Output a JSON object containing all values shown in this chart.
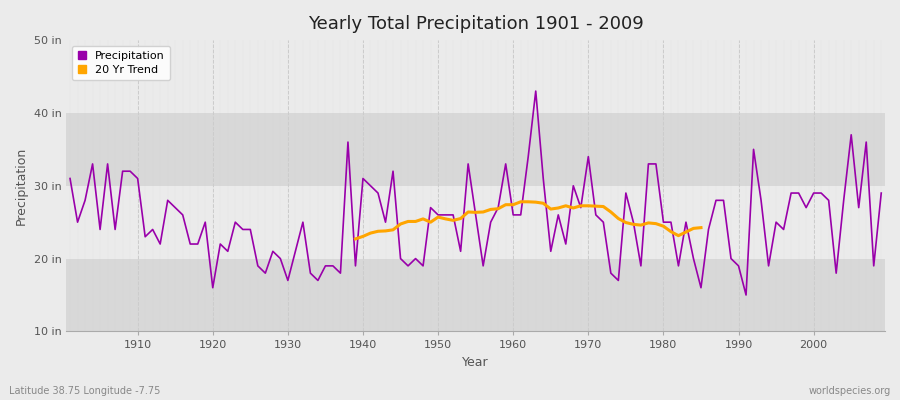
{
  "title": "Yearly Total Precipitation 1901 - 2009",
  "xlabel": "Year",
  "ylabel": "Precipitation",
  "subtitle": "Latitude 38.75 Longitude -7.75",
  "watermark": "worldspecies.org",
  "years": [
    1901,
    1902,
    1903,
    1904,
    1905,
    1906,
    1907,
    1908,
    1909,
    1910,
    1911,
    1912,
    1913,
    1914,
    1915,
    1916,
    1917,
    1918,
    1919,
    1920,
    1921,
    1922,
    1923,
    1924,
    1925,
    1926,
    1927,
    1928,
    1929,
    1930,
    1931,
    1932,
    1933,
    1934,
    1935,
    1936,
    1937,
    1938,
    1939,
    1940,
    1941,
    1942,
    1943,
    1944,
    1945,
    1946,
    1947,
    1948,
    1949,
    1950,
    1951,
    1952,
    1953,
    1954,
    1955,
    1956,
    1957,
    1958,
    1959,
    1960,
    1961,
    1962,
    1963,
    1964,
    1965,
    1966,
    1967,
    1968,
    1969,
    1970,
    1971,
    1972,
    1973,
    1974,
    1975,
    1976,
    1977,
    1978,
    1979,
    1980,
    1981,
    1982,
    1983,
    1984,
    1985,
    1986,
    1987,
    1988,
    1989,
    1990,
    1991,
    1992,
    1993,
    1994,
    1995,
    1996,
    1997,
    1998,
    1999,
    2000,
    2001,
    2002,
    2003,
    2004,
    2005,
    2006,
    2007,
    2008,
    2009
  ],
  "precip": [
    31,
    25,
    28,
    33,
    24,
    33,
    24,
    32,
    32,
    31,
    23,
    24,
    22,
    28,
    27,
    26,
    22,
    22,
    25,
    16,
    22,
    21,
    25,
    24,
    24,
    19,
    18,
    21,
    20,
    17,
    21,
    25,
    18,
    17,
    19,
    19,
    18,
    36,
    19,
    31,
    30,
    29,
    25,
    32,
    20,
    19,
    20,
    19,
    27,
    26,
    26,
    26,
    21,
    33,
    26,
    19,
    25,
    27,
    33,
    26,
    26,
    34,
    43,
    31,
    21,
    26,
    22,
    30,
    27,
    34,
    26,
    25,
    18,
    17,
    29,
    25,
    19,
    33,
    33,
    25,
    25,
    19,
    25,
    20,
    16,
    24,
    28,
    28,
    20,
    19,
    15,
    35,
    28,
    19,
    25,
    24,
    29,
    29,
    27,
    29,
    29,
    28,
    18,
    28,
    37,
    27,
    36,
    19,
    29
  ],
  "precip_color": "#9900aa",
  "trend_color": "#ffa500",
  "bg_color": "#ebebeb",
  "bg_color_dark": "#d8d8d8",
  "grid_color": "#cccccc",
  "ylim": [
    10,
    50
  ],
  "yticks": [
    10,
    20,
    30,
    40,
    50
  ],
  "ytick_labels": [
    "10 in",
    "20 in",
    "30 in",
    "40 in",
    "50 in"
  ],
  "xtick_start": 1910,
  "xtick_step": 10,
  "trend_start_idx": 38,
  "trend_end_idx": 85
}
